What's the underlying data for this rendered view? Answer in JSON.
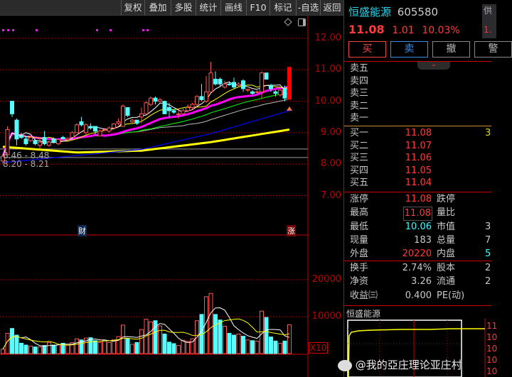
{
  "toolbar": {
    "items": [
      "复权",
      "叠加",
      "多股",
      "统计",
      "画线",
      "F10",
      "标记",
      "-自选",
      "返回"
    ]
  },
  "chart": {
    "price_axis": [
      "12.00",
      "11.00",
      "10.00",
      "9.00",
      "8.00",
      "7.00"
    ],
    "volume_axis": [
      "20000",
      "10000"
    ],
    "volume_scale": "X10",
    "marker_finance": "财",
    "marker_limit_up": "涨",
    "level_labels": [
      "8.46 - 8.48",
      "8.20 - 8.21"
    ],
    "colors": {
      "up": "#ff5555",
      "down": "#55ffff",
      "ma5": "#ffffff",
      "ma10": "#ffff00",
      "ma20": "#ff00ff",
      "ma30": "#00ff00",
      "ma40": "#bbbbbb",
      "long1": "#0000ff",
      "long2": "#ffff00"
    },
    "candles": [
      [
        8.1,
        8.3,
        8.0,
        8.25
      ],
      [
        8.3,
        9.2,
        8.3,
        9.1
      ],
      [
        10.0,
        10.0,
        9.5,
        9.6
      ],
      [
        9.4,
        9.45,
        8.6,
        8.8
      ],
      [
        8.9,
        9.0,
        8.8,
        8.85
      ],
      [
        8.8,
        8.9,
        8.6,
        8.65
      ],
      [
        8.75,
        8.9,
        8.7,
        8.85
      ],
      [
        8.75,
        8.8,
        8.6,
        8.65
      ],
      [
        8.6,
        8.85,
        8.5,
        8.7
      ],
      [
        8.85,
        9.05,
        8.6,
        8.65
      ],
      [
        8.6,
        8.75,
        8.55,
        8.7
      ],
      [
        8.8,
        8.85,
        8.7,
        8.7
      ],
      [
        8.65,
        8.8,
        8.6,
        8.78
      ],
      [
        8.85,
        8.9,
        8.8,
        8.8
      ],
      [
        8.78,
        8.85,
        8.75,
        8.82
      ],
      [
        8.85,
        9.05,
        8.85,
        9.0
      ],
      [
        9.0,
        9.3,
        9.0,
        9.25
      ],
      [
        9.35,
        9.5,
        9.2,
        9.25
      ],
      [
        9.0,
        9.3,
        8.9,
        9.25
      ],
      [
        9.2,
        9.3,
        9.1,
        9.15
      ],
      [
        9.2,
        9.2,
        8.95,
        9.05
      ],
      [
        8.9,
        9.1,
        8.9,
        9.05
      ],
      [
        9.1,
        9.15,
        9.05,
        9.1
      ],
      [
        9.05,
        9.2,
        9.0,
        9.15
      ],
      [
        9.15,
        9.3,
        9.1,
        9.28
      ],
      [
        9.3,
        9.45,
        9.25,
        9.35
      ],
      [
        9.2,
        9.9,
        9.2,
        9.85
      ],
      [
        9.8,
        9.8,
        9.5,
        9.55
      ],
      [
        9.35,
        9.45,
        9.3,
        9.4
      ],
      [
        9.4,
        9.4,
        9.25,
        9.3
      ],
      [
        9.5,
        9.8,
        9.3,
        9.6
      ],
      [
        9.6,
        10.0,
        9.55,
        9.95
      ],
      [
        9.9,
        10.15,
        9.85,
        10.1
      ],
      [
        10.1,
        10.15,
        9.9,
        10.0
      ],
      [
        10.0,
        10.1,
        9.95,
        10.05
      ],
      [
        10.0,
        10.0,
        9.6,
        9.6
      ],
      [
        9.8,
        9.95,
        9.5,
        9.7
      ],
      [
        9.7,
        9.75,
        9.6,
        9.65
      ],
      [
        9.6,
        9.75,
        9.45,
        9.6
      ],
      [
        9.6,
        9.8,
        9.55,
        9.7
      ],
      [
        9.7,
        9.9,
        9.65,
        9.8
      ],
      [
        9.8,
        9.95,
        9.75,
        9.9
      ],
      [
        9.9,
        10.2,
        9.85,
        10.15
      ],
      [
        10.15,
        10.55,
        10.0,
        10.05
      ],
      [
        10.0,
        10.8,
        9.95,
        10.3
      ],
      [
        10.3,
        11.25,
        10.3,
        10.9
      ],
      [
        10.7,
        10.95,
        10.5,
        10.55
      ],
      [
        10.7,
        10.75,
        10.45,
        10.55
      ],
      [
        10.45,
        10.65,
        10.4,
        10.55
      ],
      [
        10.55,
        10.6,
        10.5,
        10.52
      ],
      [
        10.6,
        10.75,
        10.4,
        10.45
      ],
      [
        10.5,
        10.6,
        10.45,
        10.55
      ],
      [
        10.65,
        10.7,
        10.3,
        10.4
      ],
      [
        10.35,
        10.4,
        10.3,
        10.38
      ],
      [
        10.3,
        10.35,
        10.2,
        10.25
      ],
      [
        10.3,
        10.35,
        10.25,
        10.3
      ],
      [
        10.3,
        10.95,
        10.1,
        10.9
      ],
      [
        10.9,
        10.9,
        10.7,
        10.7
      ],
      [
        10.5,
        10.55,
        10.3,
        10.4
      ],
      [
        10.3,
        10.35,
        10.15,
        10.25
      ],
      [
        10.2,
        10.4,
        10.15,
        10.35
      ],
      [
        10.4,
        10.5,
        10.0,
        10.1
      ],
      [
        10.06,
        11.08,
        10.06,
        11.08
      ]
    ],
    "volumes": [
      1200,
      5500,
      6800,
      5000,
      2800,
      2300,
      2000,
      1800,
      1800,
      2200,
      3000,
      2300,
      2400,
      2800,
      2300,
      3000,
      4000,
      3700,
      4200,
      4300,
      3500,
      3000,
      3600,
      3000,
      3700,
      4600,
      7700,
      4000,
      2500,
      3000,
      6500,
      9300,
      8600,
      8900,
      7500,
      5300,
      3100,
      2700,
      2200,
      3600,
      3300,
      4000,
      8900,
      10600,
      15400,
      16300,
      10600,
      9100,
      7400,
      5500,
      5000,
      5300,
      4700,
      3700,
      3500,
      3400,
      11500,
      9800,
      4500,
      3400,
      2800,
      3400,
      7800
    ],
    "long_ma_blue": [
      [
        0,
        8.05
      ],
      [
        30,
        8.47
      ],
      [
        45,
        8.97
      ],
      [
        62,
        9.7
      ]
    ],
    "long_ma_yellow": [
      [
        0,
        8.55
      ],
      [
        16,
        8.37
      ],
      [
        30,
        8.43
      ],
      [
        45,
        8.7
      ],
      [
        62,
        9.1
      ]
    ]
  },
  "stock": {
    "name": "恒盛能源",
    "code": "605580",
    "price": "11.08",
    "change": "1.01",
    "pct": "10.03%",
    "side_tab": "供",
    "side_val": "1."
  },
  "buttons": {
    "buy": "买",
    "sell": "卖",
    "cancel": "撤",
    "alert": "警"
  },
  "asks": [
    "卖五",
    "卖四",
    "卖三",
    "卖二",
    "卖一"
  ],
  "bids": [
    {
      "l": "买一",
      "p": "11.08",
      "v": "3"
    },
    {
      "l": "买二",
      "p": "11.07"
    },
    {
      "l": "买三",
      "p": "11.06"
    },
    {
      "l": "买四",
      "p": "11.05"
    },
    {
      "l": "买五",
      "p": "11.04"
    }
  ],
  "stats": [
    {
      "l": "涨停",
      "v": "11.08",
      "c": "red",
      "l2": "跌停",
      "v2": ""
    },
    {
      "l": "最高",
      "v": "11.08",
      "c": "red",
      "l2": "量比",
      "v2": ""
    },
    {
      "l": "最低",
      "v": "10.06",
      "c": "cyan",
      "l2": "市值",
      "v2": "3"
    },
    {
      "l": "现量",
      "v": "183",
      "c": "wh",
      "l2": "总量",
      "v2": "7"
    },
    {
      "l": "外盘",
      "v": "20220",
      "c": "red",
      "l2": "内盘",
      "v2": "5",
      "c2": "cyan"
    }
  ],
  "fin": [
    {
      "l": "换手",
      "v": "2.74%",
      "l2": "股本",
      "v2": "2"
    },
    {
      "l": "净资",
      "v": "3.26",
      "l2": "流通",
      "v2": "2"
    },
    {
      "l": "收益㈢",
      "v": "0.400",
      "l2": "PE(动)",
      "v2": ""
    }
  ],
  "mini": {
    "title": "恒盛能源",
    "axis": [
      "11",
      "10",
      "10",
      "10",
      "10"
    ]
  },
  "watermark": "@我的亞庄理论亚庄村"
}
